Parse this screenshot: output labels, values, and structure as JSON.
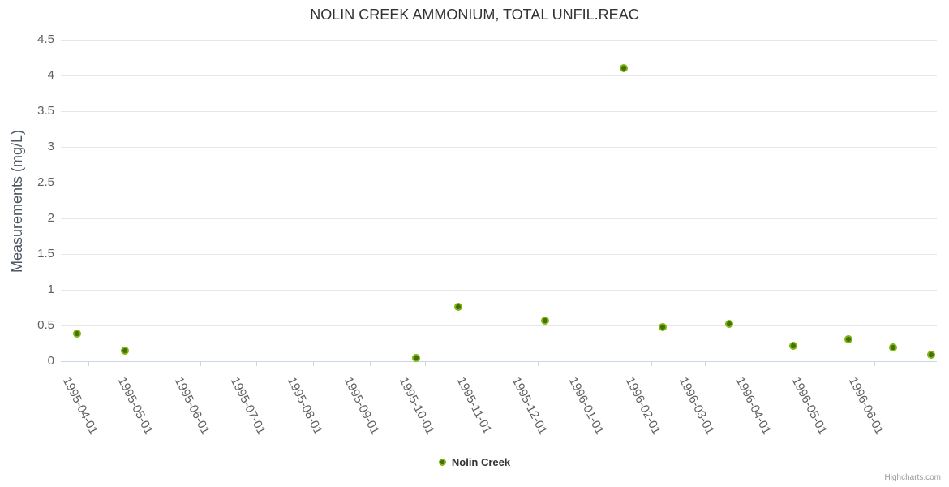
{
  "chart": {
    "credits": "Highcharts.com"
  },
  "palette": {
    "grid_color": "#e6e6e6",
    "axis_line_color": "#ccd6eb",
    "tick_label_color": "#606060",
    "title_color": "#333333",
    "series_green_outer": "#7db50e",
    "series_green_center": "#456f08"
  },
  "chart_data": {
    "type": "scatter",
    "title": "NOLIN CREEK AMMONIUM, TOTAL UNFIL.REAC",
    "xlabel": "",
    "ylabel": "Measurements (mg/L)",
    "ylim": [
      0,
      4.5
    ],
    "yticks": [
      {
        "v": 0,
        "label": "0"
      },
      {
        "v": 0.5,
        "label": "0.5"
      },
      {
        "v": 1,
        "label": "1"
      },
      {
        "v": 1.5,
        "label": "1.5"
      },
      {
        "v": 2,
        "label": "2"
      },
      {
        "v": 2.5,
        "label": "2.5"
      },
      {
        "v": 3,
        "label": "3"
      },
      {
        "v": 3.5,
        "label": "3.5"
      },
      {
        "v": 4,
        "label": "4"
      },
      {
        "v": 4.5,
        "label": "4.5"
      }
    ],
    "x_min": "1995-03-17",
    "x_max": "1996-07-05",
    "xticks": [
      "1995-04-01",
      "1995-05-01",
      "1995-06-01",
      "1995-07-01",
      "1995-08-01",
      "1995-09-01",
      "1995-10-01",
      "1995-11-01",
      "1995-12-01",
      "1996-01-01",
      "1996-02-01",
      "1996-03-01",
      "1996-04-01",
      "1996-05-01",
      "1996-06-01"
    ],
    "grid": true,
    "legend_position": "bottom-center",
    "series": [
      {
        "name": "Nolin Creek",
        "color": "#7db50e",
        "color_center": "#456f08",
        "points": [
          {
            "date": "1995-03-26",
            "value": 0.39
          },
          {
            "date": "1995-04-21",
            "value": 0.15
          },
          {
            "date": "1995-09-26",
            "value": 0.05
          },
          {
            "date": "1995-10-19",
            "value": 0.76
          },
          {
            "date": "1995-12-05",
            "value": 0.57
          },
          {
            "date": "1996-01-17",
            "value": 4.1
          },
          {
            "date": "1996-02-07",
            "value": 0.48
          },
          {
            "date": "1996-03-14",
            "value": 0.52
          },
          {
            "date": "1996-04-18",
            "value": 0.22
          },
          {
            "date": "1996-05-18",
            "value": 0.31
          },
          {
            "date": "1996-06-11",
            "value": 0.19
          },
          {
            "date": "1996-07-02",
            "value": 0.09
          }
        ]
      }
    ]
  }
}
